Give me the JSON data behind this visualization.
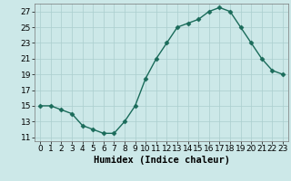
{
  "x": [
    0,
    1,
    2,
    3,
    4,
    5,
    6,
    7,
    8,
    9,
    10,
    11,
    12,
    13,
    14,
    15,
    16,
    17,
    18,
    19,
    20,
    21,
    22,
    23
  ],
  "y": [
    15,
    15,
    14.5,
    14,
    12.5,
    12,
    11.5,
    11.5,
    13,
    15,
    18.5,
    21,
    23,
    25,
    25.5,
    26,
    27,
    27.5,
    27,
    25,
    23,
    21,
    19.5,
    19
  ],
  "line_color": "#1a6b5a",
  "marker_color": "#1a6b5a",
  "bg_color": "#cce8e8",
  "grid_color": "#aacece",
  "xlabel": "Humidex (Indice chaleur)",
  "ylim": [
    10.5,
    28
  ],
  "yticks": [
    11,
    13,
    15,
    17,
    19,
    21,
    23,
    25,
    27
  ],
  "marker_size": 2.5,
  "line_width": 1.0,
  "xlabel_fontsize": 7.5,
  "tick_fontsize": 6.5
}
